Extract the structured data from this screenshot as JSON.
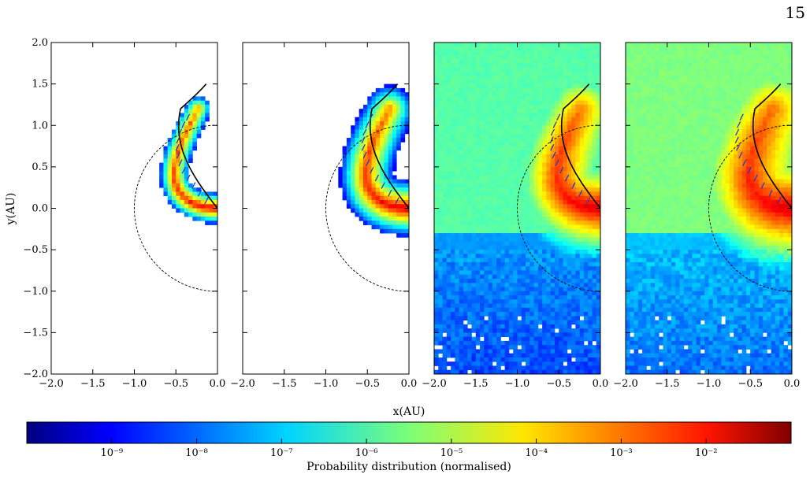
{
  "page_number": "15",
  "chart_data": {
    "type": "heatmap",
    "panel_count": 4,
    "xlabel": "x(AU)",
    "ylabel": "y(AU)",
    "xlim": [
      -2.0,
      0.0
    ],
    "ylim": [
      -2.0,
      2.0
    ],
    "xticks": [
      -2.0,
      -1.5,
      -1.0,
      -0.5,
      0.0
    ],
    "xtick_labels": [
      "−2.0",
      "−1.5",
      "−1.0",
      "−0.5",
      "0.0"
    ],
    "yticks": [
      2.0,
      1.5,
      1.0,
      0.5,
      0.0,
      -0.5,
      -1.0,
      -1.5,
      -2.0
    ],
    "ytick_labels": [
      "2.0",
      "1.5",
      "1.0",
      "0.5",
      "0.0",
      "−0.5",
      "−1.0",
      "−1.5",
      "−2.0"
    ],
    "colorbar": {
      "label": "Probability distribution (normalised)",
      "scale": "log",
      "range": [
        1e-10,
        0.1
      ],
      "ticks": [
        "10⁻⁹",
        "10⁻⁸",
        "10⁻⁷",
        "10⁻⁶",
        "10⁻⁵",
        "10⁻⁴",
        "10⁻³",
        "10⁻²"
      ],
      "tick_exponents": [
        -9,
        -8,
        -7,
        -6,
        -5,
        -4,
        -3,
        -2
      ],
      "colormap": "jet"
    },
    "overlays": {
      "dashed_circle_radius_AU": 1.0,
      "solid_curve_top_y_AU": 1.5
    }
  }
}
